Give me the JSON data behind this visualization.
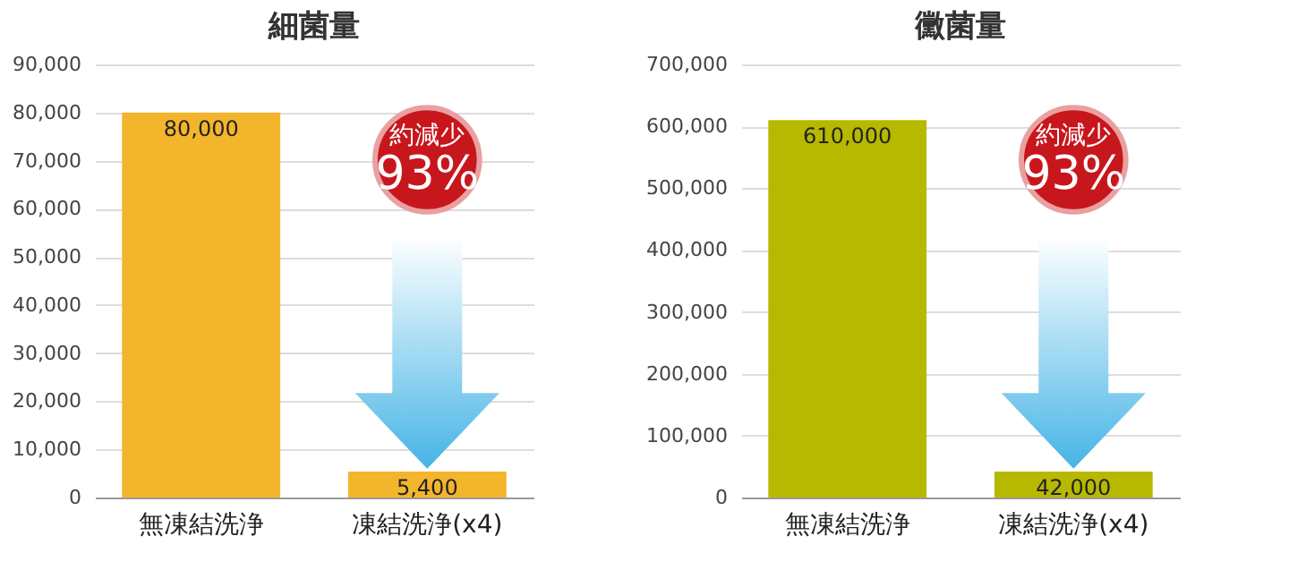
{
  "chart_data": [
    {
      "type": "bar",
      "title": "細菌量",
      "categories": [
        "無凍結洗浄",
        "凍結洗浄(x4)"
      ],
      "values": [
        80000,
        5400
      ],
      "color": "#f3b52c",
      "value_labels": [
        "80,000",
        "5,400"
      ],
      "ylim": [
        0,
        90000
      ],
      "yticks": [
        {
          "value": 0,
          "label": "0"
        },
        {
          "value": 10000,
          "label": "10,000"
        },
        {
          "value": 20000,
          "label": "20,000"
        },
        {
          "value": 30000,
          "label": "30,000"
        },
        {
          "value": 40000,
          "label": "40,000"
        },
        {
          "value": 50000,
          "label": "50,000"
        },
        {
          "value": 60000,
          "label": "60,000"
        },
        {
          "value": 70000,
          "label": "70,000"
        },
        {
          "value": 80000,
          "label": "80,000"
        },
        {
          "value": 90000,
          "label": "90,000"
        }
      ],
      "grid": "y",
      "annotations": [
        "約減少",
        "93%"
      ]
    },
    {
      "type": "bar",
      "title": "黴菌量",
      "categories": [
        "無凍結洗浄",
        "凍結洗浄(x4)"
      ],
      "values": [
        610000,
        42000
      ],
      "color": "#b7b900",
      "value_labels": [
        "610,000",
        "42,000"
      ],
      "ylim": [
        0,
        700000
      ],
      "yticks": [
        {
          "value": 0,
          "label": "0"
        },
        {
          "value": 100000,
          "label": "100,000"
        },
        {
          "value": 200000,
          "label": "200,000"
        },
        {
          "value": 300000,
          "label": "300,000"
        },
        {
          "value": 400000,
          "label": "400,000"
        },
        {
          "value": 500000,
          "label": "500,000"
        },
        {
          "value": 600000,
          "label": "600,000"
        },
        {
          "value": 700000,
          "label": "700,000"
        }
      ],
      "grid": "y",
      "annotations": [
        "約減少",
        "93%"
      ]
    }
  ]
}
